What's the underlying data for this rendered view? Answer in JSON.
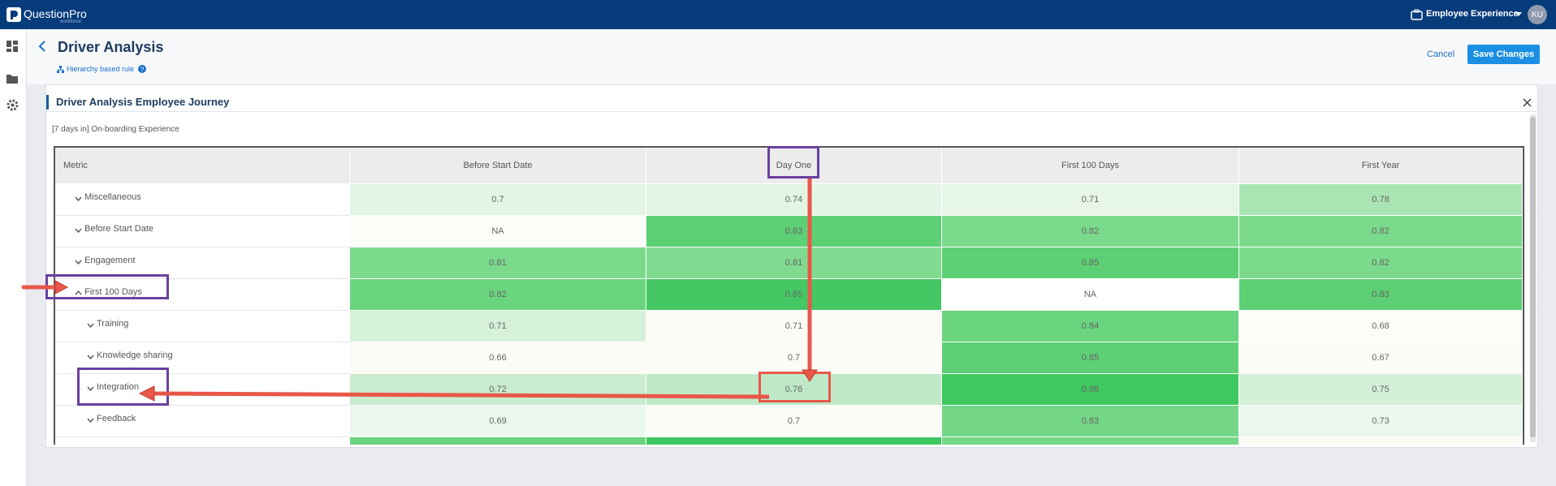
{
  "top_bar": {
    "logo": "QuestionPro",
    "logo_sub": "workforce",
    "product": "Employee Experience",
    "avatar": "KU"
  },
  "header": {
    "title": "Driver Analysis",
    "rule": "Hierarchy based rule",
    "cancel": "Cancel",
    "save": "Save Changes"
  },
  "panel": {
    "title": "Driver Analysis Employee Journey",
    "subtitle": "[7 days in] On-boarding Experience"
  },
  "table": {
    "columns": [
      "Metric",
      "Before Start Date",
      "Day One",
      "First 100 Days",
      "First Year"
    ],
    "rows": [
      {
        "label": "Miscellaneous",
        "level": 0,
        "chevron": "down",
        "values": [
          0.7,
          0.74,
          0.71,
          0.78
        ],
        "colors": [
          "#e3f5e5",
          "#e3f5e5",
          "#e6f6e7",
          "#a9e5b3"
        ]
      },
      {
        "label": "Before Start Date",
        "level": 0,
        "chevron": "down",
        "values": [
          "NA",
          0.83,
          0.82,
          0.82
        ],
        "colors": [
          "#fcfdf8",
          "#5dcf74",
          "#7bd98c",
          "#7bd98c"
        ]
      },
      {
        "label": "Engagement",
        "level": 0,
        "chevron": "down",
        "values": [
          0.81,
          0.81,
          0.85,
          0.82
        ],
        "colors": [
          "#7bd98c",
          "#80da90",
          "#5dcf74",
          "#7bd98c"
        ]
      },
      {
        "label": "First 100 Days",
        "level": 0,
        "chevron": "up",
        "values": [
          0.82,
          0.85,
          "NA",
          0.83
        ],
        "colors": [
          "#6ad47f",
          "#45c764",
          "#ffffff",
          "#5dcf74"
        ]
      },
      {
        "label": "Training",
        "level": 1,
        "chevron": "down",
        "values": [
          0.71,
          0.71,
          0.84,
          0.68
        ],
        "colors": [
          "#d6f1da",
          "#fbfcf6",
          "#6ad47f",
          "#fdfdf7"
        ]
      },
      {
        "label": "Knowledge sharing",
        "level": 1,
        "chevron": "down",
        "values": [
          0.66,
          0.7,
          0.85,
          0.67
        ],
        "colors": [
          "#fbfcf6",
          "#fbfcf6",
          "#5dcf74",
          "#fbfcf6"
        ]
      },
      {
        "label": "Integration",
        "level": 1,
        "chevron": "down",
        "values": [
          0.72,
          0.76,
          0.88,
          0.75
        ],
        "colors": [
          "#c9eccf",
          "#bfe9c6",
          "#3ec85f",
          "#d4f0d8"
        ]
      },
      {
        "label": "Feedback",
        "level": 1,
        "chevron": "down",
        "values": [
          0.69,
          0.7,
          0.83,
          0.73
        ],
        "colors": [
          "#eaf7ec",
          "#fbfcf6",
          "#74d787",
          "#eaf7ec"
        ]
      }
    ]
  }
}
